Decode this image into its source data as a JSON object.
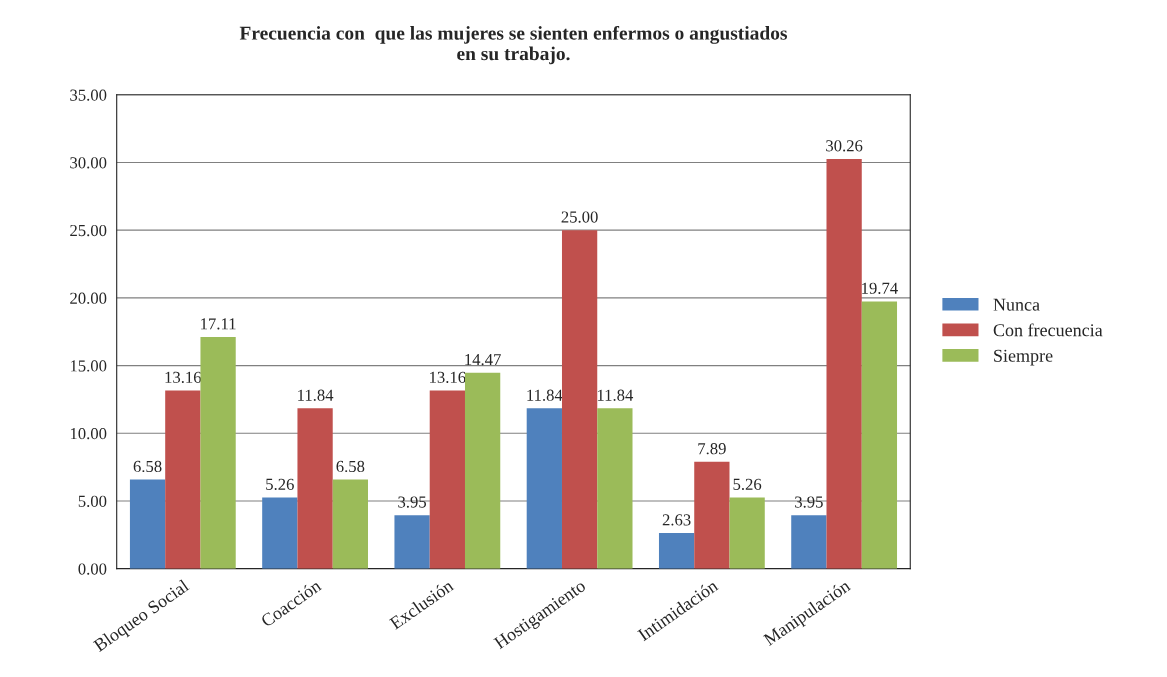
{
  "chart_data": {
    "type": "bar",
    "title": "Frecuencia con  que las mujeres se sienten enfermos o angustiados\nen su trabajo.",
    "categories": [
      "Bloqueo Social",
      "Coacción",
      "Exclusión",
      "Hostigamiento",
      "Intimidación",
      "Manipulación"
    ],
    "series": [
      {
        "name": "Nunca",
        "color": "#4f81bd",
        "values": [
          6.58,
          5.26,
          3.95,
          11.84,
          2.63,
          3.95
        ],
        "value_labels": [
          "6.58",
          "5.26",
          "3.95",
          "11.84",
          "2.63",
          "3.95"
        ]
      },
      {
        "name": "Con frecuencia",
        "color": "#c0504d",
        "values": [
          13.16,
          11.84,
          13.16,
          25.0,
          7.89,
          30.26
        ],
        "value_labels": [
          "13.16",
          "11.84",
          "13.16",
          "25.00",
          "7.89",
          "30.26"
        ]
      },
      {
        "name": "Siempre",
        "color": "#9bbb59",
        "values": [
          17.11,
          6.58,
          14.47,
          11.84,
          5.26,
          19.74
        ],
        "value_labels": [
          "17.11",
          "6.58",
          "14.47",
          "11.84",
          "5.26",
          "19.74"
        ]
      }
    ],
    "ylim": [
      0,
      35
    ],
    "yticks": [
      {
        "value": 0,
        "label": "0.00"
      },
      {
        "value": 5,
        "label": "5.00"
      },
      {
        "value": 10,
        "label": "10.00"
      },
      {
        "value": 15,
        "label": "15.00"
      },
      {
        "value": 20,
        "label": "20.00"
      },
      {
        "value": 25,
        "label": "25.00"
      },
      {
        "value": 30,
        "label": "30.00"
      },
      {
        "value": 35,
        "label": "35.00"
      }
    ],
    "grid": "y",
    "legend": "right"
  }
}
